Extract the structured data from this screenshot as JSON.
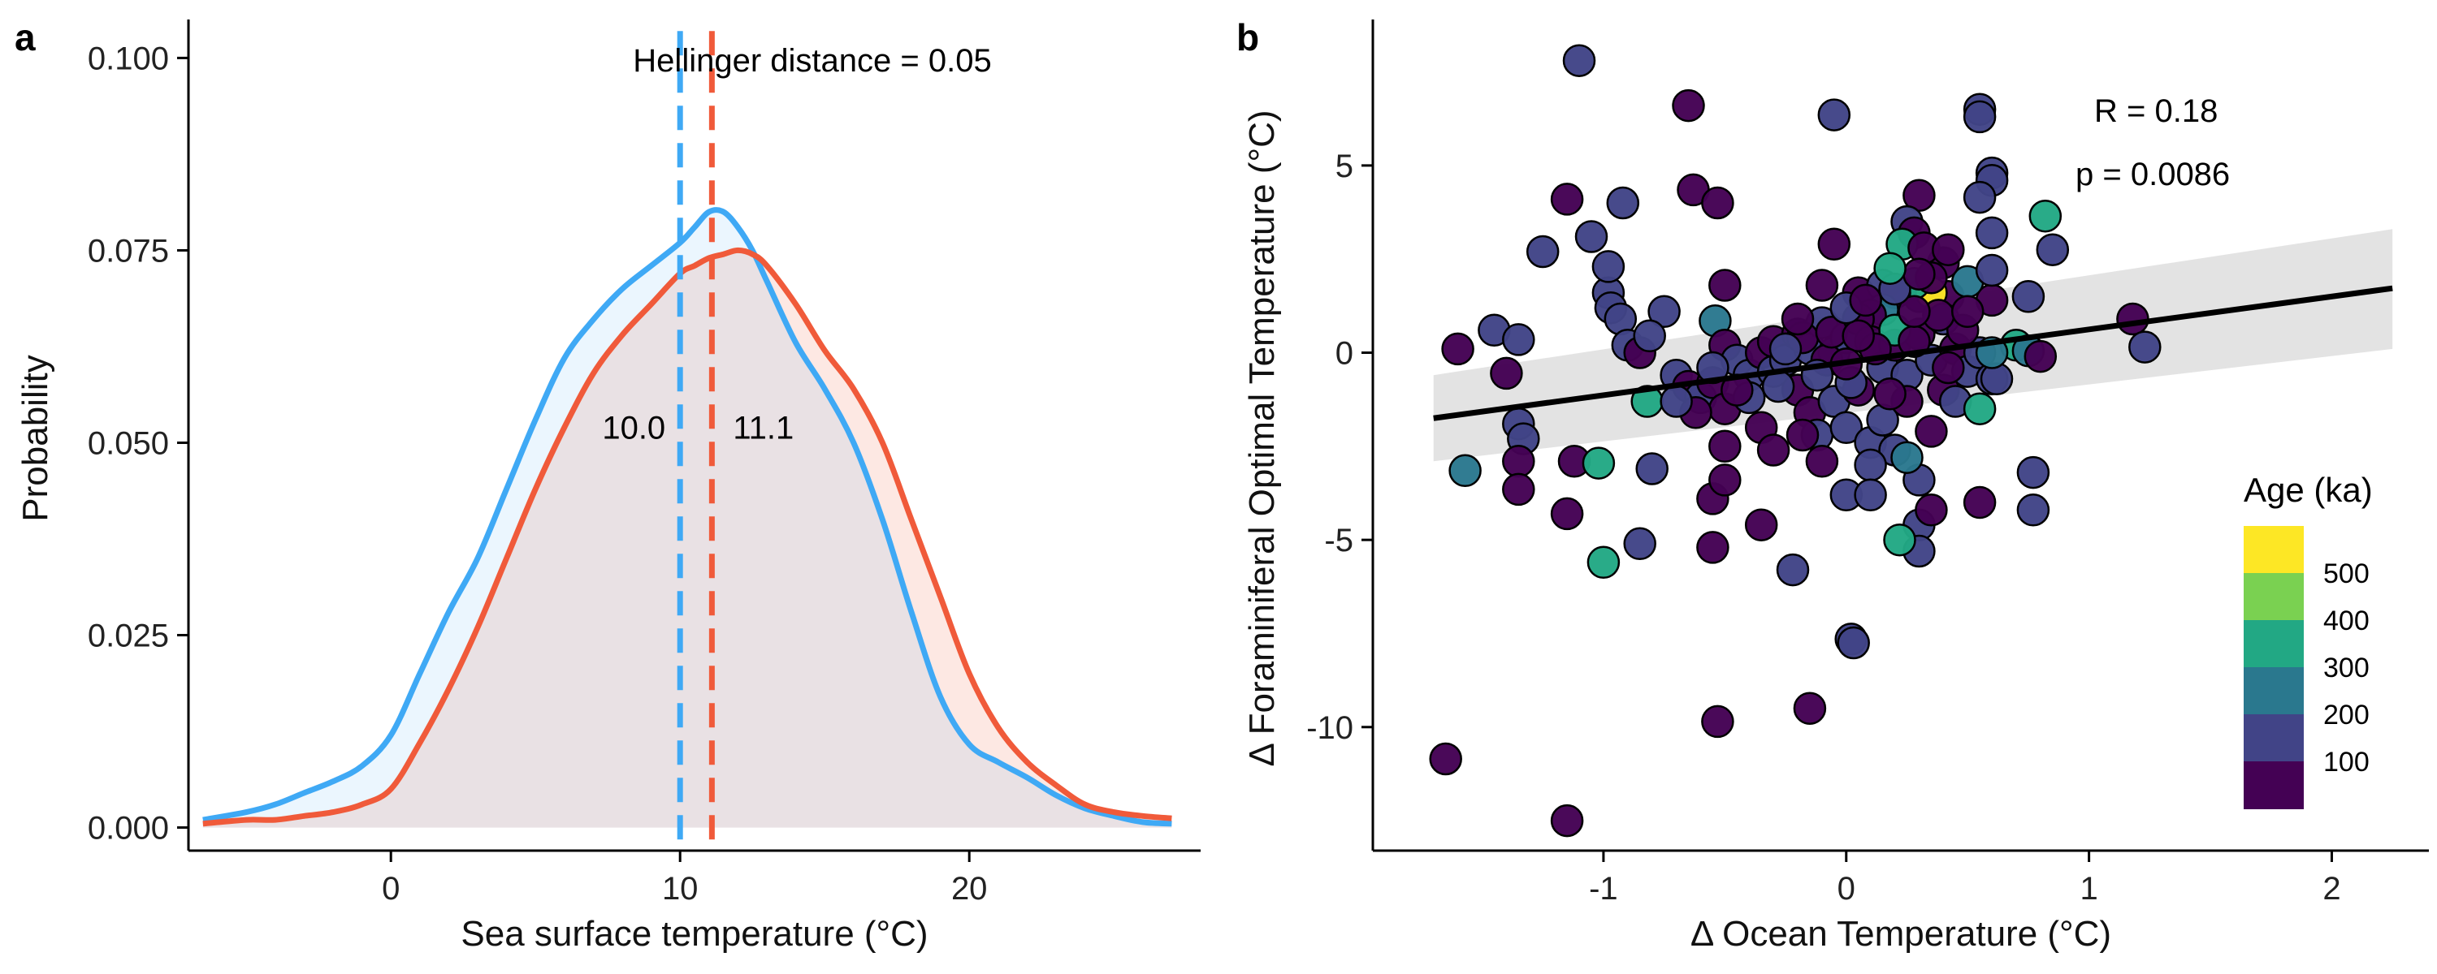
{
  "chart_data": [
    {
      "panel": "a",
      "type": "area",
      "annotation": "Hellinger distance = 0.05",
      "xlabel": "Sea surface temperature (°C)",
      "ylabel": "Probability",
      "xlim": [
        -7,
        28
      ],
      "ylim": [
        -0.003,
        0.105
      ],
      "xticks": [
        0,
        10,
        20
      ],
      "yticks": [
        0.0,
        0.025,
        0.05,
        0.075,
        0.1
      ],
      "ytick_labels": [
        "0.000",
        "0.025",
        "0.050",
        "0.075",
        "0.100"
      ],
      "x": [
        -6.5,
        -5,
        -4,
        -3,
        -2,
        -1,
        0,
        1,
        2,
        3,
        4,
        5,
        6,
        7,
        8,
        9,
        10,
        10.5,
        11,
        11.5,
        12,
        12.5,
        13,
        14,
        15,
        16,
        17,
        18,
        19,
        20,
        21,
        22,
        23,
        24,
        25,
        26,
        27
      ],
      "series": [
        {
          "color": "#3FA9F5",
          "mean": 10.0,
          "mean_label": "10.0",
          "values": [
            0.001,
            0.002,
            0.003,
            0.0045,
            0.006,
            0.008,
            0.012,
            0.02,
            0.028,
            0.035,
            0.044,
            0.053,
            0.061,
            0.066,
            0.07,
            0.073,
            0.076,
            0.078,
            0.08,
            0.08,
            0.078,
            0.075,
            0.071,
            0.063,
            0.057,
            0.05,
            0.04,
            0.028,
            0.017,
            0.0108,
            0.0085,
            0.0065,
            0.0042,
            0.0025,
            0.0015,
            0.0007,
            0.0005
          ]
        },
        {
          "color": "#F05A3A",
          "mean": 11.1,
          "mean_label": "11.1",
          "values": [
            0.0005,
            0.001,
            0.001,
            0.0015,
            0.002,
            0.003,
            0.005,
            0.011,
            0.018,
            0.026,
            0.035,
            0.044,
            0.052,
            0.059,
            0.064,
            0.068,
            0.072,
            0.073,
            0.074,
            0.0745,
            0.075,
            0.0745,
            0.073,
            0.068,
            0.062,
            0.057,
            0.05,
            0.04,
            0.03,
            0.02,
            0.013,
            0.0085,
            0.0055,
            0.003,
            0.002,
            0.0015,
            0.0012
          ]
        }
      ]
    },
    {
      "panel": "b",
      "type": "scatter",
      "xlabel": "Δ Ocean Temperature (°C)",
      "ylabel": "Δ Foraminiferal Optimal Temperature (°C)",
      "xlim": [
        -1.95,
        2.4
      ],
      "ylim": [
        -13.3,
        8.9
      ],
      "xticks": [
        -1,
        0,
        1,
        2
      ],
      "xtick_labels": [
        "-1",
        "0",
        "1",
        "2"
      ],
      "yticks": [
        -10,
        -5,
        0,
        5
      ],
      "ytick_labels": [
        "-10",
        "-5",
        "0",
        "5"
      ],
      "stat_R": "R = 0.18",
      "stat_p": "p = 0.0086",
      "fit": {
        "x": [
          -1.7,
          2.25
        ],
        "y": [
          -1.75,
          1.72
        ],
        "ci_lower_at_ends": [
          -2.9,
          0.1
        ],
        "ci_upper_at_ends": [
          -0.6,
          3.3
        ],
        "color": "#000000",
        "ci_color": "#D9D9D9"
      },
      "legend": {
        "title": "Age (ka)",
        "labels": [
          "500",
          "400",
          "300",
          "200",
          "100"
        ],
        "colors": [
          "#FDE725",
          "#7AD151",
          "#22A884",
          "#2A788E",
          "#414487",
          "#440154"
        ]
      },
      "points": [
        [
          -1.1,
          7.8,
          1
        ],
        [
          -0.65,
          6.6,
          0
        ],
        [
          -0.05,
          6.35,
          1
        ],
        [
          0.55,
          6.5,
          1
        ],
        [
          0.55,
          6.3,
          1
        ],
        [
          0.6,
          4.8,
          1
        ],
        [
          0.6,
          4.6,
          1
        ],
        [
          -1.15,
          4.1,
          0
        ],
        [
          -0.92,
          4.0,
          1
        ],
        [
          -0.63,
          4.35,
          0
        ],
        [
          -0.53,
          4.0,
          0
        ],
        [
          0.3,
          4.2,
          0
        ],
        [
          0.55,
          4.15,
          1
        ],
        [
          0.82,
          3.65,
          3
        ],
        [
          -1.05,
          3.1,
          1
        ],
        [
          -1.25,
          2.7,
          1
        ],
        [
          0.25,
          3.5,
          1
        ],
        [
          0.28,
          3.2,
          0
        ],
        [
          0.6,
          3.2,
          1
        ],
        [
          0.85,
          2.75,
          1
        ],
        [
          0.23,
          2.9,
          3
        ],
        [
          -0.05,
          2.9,
          0
        ],
        [
          -0.75,
          1.1,
          1
        ],
        [
          -0.5,
          1.8,
          0
        ],
        [
          -0.1,
          1.8,
          0
        ],
        [
          0.05,
          1.6,
          0
        ],
        [
          0.15,
          1.8,
          1
        ],
        [
          0.3,
          1.5,
          0
        ],
        [
          0.42,
          1.5,
          0
        ],
        [
          0.6,
          1.4,
          0
        ],
        [
          0.75,
          1.5,
          1
        ],
        [
          0.35,
          1.6,
          5
        ],
        [
          0.28,
          1.85,
          3
        ],
        [
          0.5,
          1.9,
          2
        ],
        [
          0.6,
          2.2,
          1
        ],
        [
          0.4,
          2.4,
          0
        ],
        [
          0.35,
          2.0,
          0
        ],
        [
          0.2,
          1.6,
          0
        ],
        [
          0.15,
          1.15,
          2
        ],
        [
          0.1,
          1.0,
          0
        ],
        [
          -0.98,
          1.6,
          1
        ],
        [
          -0.97,
          1.2,
          1
        ],
        [
          -0.98,
          2.3,
          1
        ],
        [
          -0.93,
          0.9,
          1
        ],
        [
          -0.9,
          0.2,
          1
        ],
        [
          -0.85,
          0.0,
          0
        ],
        [
          -0.81,
          0.45,
          1
        ],
        [
          -1.45,
          0.6,
          1
        ],
        [
          -1.35,
          0.35,
          1
        ],
        [
          -1.6,
          0.1,
          0
        ],
        [
          -1.4,
          -0.55,
          0
        ],
        [
          -1.35,
          -1.9,
          1
        ],
        [
          -1.33,
          -2.3,
          1
        ],
        [
          -1.35,
          -2.9,
          0
        ],
        [
          -1.35,
          -3.65,
          0
        ],
        [
          -1.12,
          -2.9,
          0
        ],
        [
          -1.15,
          -4.3,
          0
        ],
        [
          -1.02,
          -2.95,
          3
        ],
        [
          -0.85,
          -5.1,
          1
        ],
        [
          -1.0,
          -5.6,
          3
        ],
        [
          -0.8,
          -3.1,
          1
        ],
        [
          -0.54,
          0.85,
          2
        ],
        [
          -0.5,
          0.2,
          0
        ],
        [
          -0.45,
          -0.2,
          1
        ],
        [
          -0.4,
          -0.6,
          1
        ],
        [
          -0.35,
          0.0,
          0
        ],
        [
          -0.3,
          0.3,
          0
        ],
        [
          -0.3,
          -0.5,
          1
        ],
        [
          -0.25,
          -0.2,
          1
        ],
        [
          -0.2,
          0.5,
          0
        ],
        [
          -0.15,
          0.1,
          1
        ],
        [
          -0.1,
          0.8,
          1
        ],
        [
          -0.05,
          0.0,
          1
        ],
        [
          0.0,
          0.4,
          1
        ],
        [
          0.05,
          0.9,
          0
        ],
        [
          0.1,
          0.3,
          0
        ],
        [
          0.15,
          -0.4,
          1
        ],
        [
          0.2,
          0.2,
          0
        ],
        [
          0.25,
          -0.6,
          1
        ],
        [
          0.3,
          0.5,
          0
        ],
        [
          0.35,
          -0.2,
          1
        ],
        [
          0.4,
          0.9,
          1
        ],
        [
          0.45,
          0.1,
          0
        ],
        [
          0.5,
          -0.5,
          1
        ],
        [
          0.55,
          0.0,
          1
        ],
        [
          0.6,
          -0.7,
          1
        ],
        [
          0.7,
          0.2,
          3
        ],
        [
          0.75,
          0.05,
          2
        ],
        [
          0.8,
          -0.1,
          0
        ],
        [
          1.18,
          0.9,
          0
        ],
        [
          1.23,
          0.15,
          1
        ],
        [
          -0.7,
          -0.6,
          1
        ],
        [
          -0.65,
          -0.9,
          0
        ],
        [
          -0.6,
          -1.2,
          1
        ],
        [
          -0.55,
          -0.8,
          0
        ],
        [
          -0.5,
          -1.5,
          0
        ],
        [
          -0.4,
          -1.2,
          1
        ],
        [
          -0.35,
          -2.0,
          0
        ],
        [
          -0.3,
          -2.6,
          0
        ],
        [
          -0.2,
          -1.0,
          0
        ],
        [
          -0.15,
          -1.6,
          0
        ],
        [
          -0.12,
          -2.2,
          1
        ],
        [
          -0.1,
          -2.9,
          0
        ],
        [
          -0.05,
          -1.3,
          1
        ],
        [
          0.0,
          -2.0,
          1
        ],
        [
          0.05,
          -1.0,
          0
        ],
        [
          0.1,
          -2.4,
          1
        ],
        [
          0.15,
          -1.8,
          1
        ],
        [
          0.2,
          -2.6,
          1
        ],
        [
          0.25,
          -1.3,
          0
        ],
        [
          0.3,
          -3.4,
          1
        ],
        [
          0.35,
          -2.1,
          0
        ],
        [
          0.4,
          -1.0,
          0
        ],
        [
          0.45,
          -1.3,
          1
        ],
        [
          0.55,
          -1.5,
          3
        ],
        [
          0.62,
          -0.7,
          1
        ],
        [
          0.1,
          -3.0,
          1
        ],
        [
          0.0,
          -3.8,
          1
        ],
        [
          0.1,
          -3.8,
          1
        ],
        [
          0.25,
          -2.8,
          2
        ],
        [
          0.3,
          -4.6,
          1
        ],
        [
          0.3,
          -5.3,
          1
        ],
        [
          0.22,
          -5.0,
          3
        ],
        [
          0.35,
          -4.2,
          0
        ],
        [
          0.55,
          -4.0,
          0
        ],
        [
          0.77,
          -3.2,
          1
        ],
        [
          0.77,
          -4.2,
          1
        ],
        [
          -0.55,
          -3.9,
          0
        ],
        [
          -0.5,
          -3.4,
          0
        ],
        [
          -0.55,
          -5.2,
          0
        ],
        [
          -0.35,
          -4.6,
          0
        ],
        [
          -0.22,
          -5.8,
          1
        ],
        [
          -0.5,
          -2.5,
          0
        ],
        [
          -0.18,
          -2.2,
          0
        ],
        [
          0.02,
          -7.65,
          1
        ],
        [
          0.03,
          -7.75,
          1
        ],
        [
          -0.15,
          -9.5,
          0
        ],
        [
          -0.53,
          -9.85,
          0
        ],
        [
          -1.65,
          -10.85,
          0
        ],
        [
          -1.15,
          -12.5,
          0
        ],
        [
          -1.57,
          -3.15,
          2
        ],
        [
          -0.82,
          -1.3,
          3
        ],
        [
          0.2,
          0.6,
          3
        ],
        [
          0.6,
          0.0,
          2
        ],
        [
          -0.08,
          -0.2,
          0
        ],
        [
          0.02,
          -0.8,
          1
        ],
        [
          0.12,
          0.1,
          0
        ],
        [
          0.18,
          -1.1,
          0
        ],
        [
          0.28,
          0.3,
          0
        ],
        [
          -0.28,
          -0.9,
          1
        ],
        [
          -0.18,
          0.4,
          0
        ],
        [
          -0.06,
          0.55,
          0
        ],
        [
          0.05,
          0.45,
          0
        ],
        [
          -0.45,
          -1.0,
          0
        ],
        [
          -0.62,
          -1.6,
          0
        ],
        [
          -0.7,
          -1.3,
          1
        ],
        [
          -0.55,
          -0.4,
          1
        ],
        [
          0.42,
          -0.4,
          0
        ],
        [
          0.48,
          0.6,
          0
        ],
        [
          0.38,
          1.0,
          0
        ],
        [
          0.28,
          1.1,
          0
        ],
        [
          0.2,
          1.7,
          1
        ],
        [
          0.0,
          1.2,
          1
        ],
        [
          0.08,
          1.4,
          0
        ],
        [
          -0.2,
          0.9,
          0
        ],
        [
          -0.25,
          0.1,
          1
        ],
        [
          -0.12,
          -0.6,
          1
        ],
        [
          0.0,
          -0.3,
          0
        ],
        [
          0.32,
          2.8,
          0
        ],
        [
          0.3,
          2.1,
          0
        ],
        [
          0.18,
          2.25,
          3
        ],
        [
          0.42,
          2.75,
          0
        ],
        [
          0.5,
          1.1,
          0
        ]
      ]
    }
  ]
}
